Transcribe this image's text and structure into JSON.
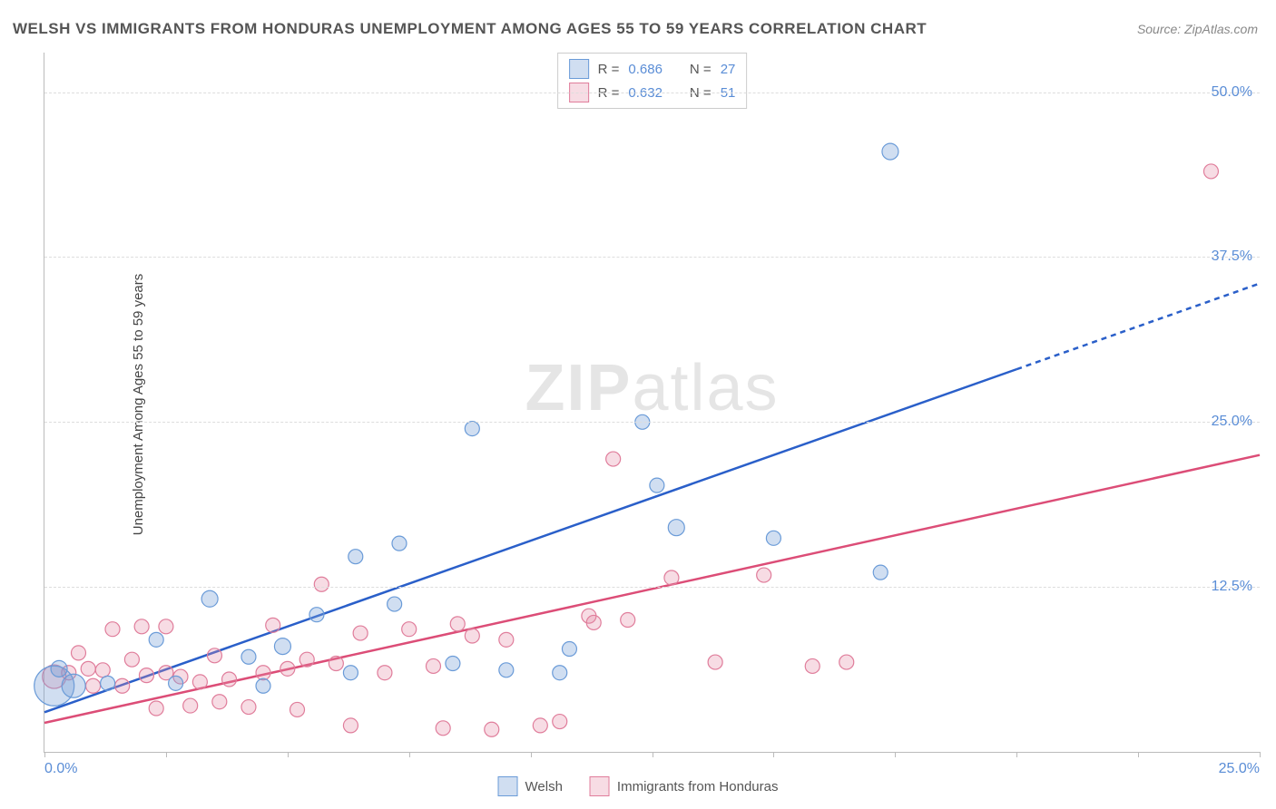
{
  "title": "WELSH VS IMMIGRANTS FROM HONDURAS UNEMPLOYMENT AMONG AGES 55 TO 59 YEARS CORRELATION CHART",
  "source": "Source: ZipAtlas.com",
  "y_axis_label": "Unemployment Among Ages 55 to 59 years",
  "watermark_a": "ZIP",
  "watermark_b": "atlas",
  "chart": {
    "type": "scatter",
    "xlim": [
      0,
      25
    ],
    "ylim": [
      0,
      53
    ],
    "x_tick_labels": {
      "left": "0.0%",
      "right": "25.0%"
    },
    "x_ticks": [
      0,
      2.5,
      5,
      7.5,
      10,
      12.5,
      15,
      17.5,
      20,
      22.5,
      25
    ],
    "y_gridlines": [
      12.5,
      25.0,
      37.5,
      50.0
    ],
    "y_tick_labels": [
      "12.5%",
      "25.0%",
      "37.5%",
      "50.0%"
    ],
    "background_color": "#ffffff",
    "grid_color": "#dddddd",
    "axis_color": "#bbbbbb",
    "tick_label_color": "#5a8dd6",
    "series": {
      "welsh": {
        "label": "Welsh",
        "R": "0.686",
        "N": "27",
        "fill": "rgba(120,160,215,0.35)",
        "stroke": "#6a9bd8",
        "line_color": "#2a5fc9",
        "points": [
          {
            "x": 0.2,
            "y": 5.0,
            "r": 22
          },
          {
            "x": 0.3,
            "y": 6.3,
            "r": 9
          },
          {
            "x": 0.6,
            "y": 5.0,
            "r": 13
          },
          {
            "x": 1.3,
            "y": 5.2,
            "r": 8
          },
          {
            "x": 2.3,
            "y": 8.5,
            "r": 8
          },
          {
            "x": 2.7,
            "y": 5.2,
            "r": 8
          },
          {
            "x": 3.4,
            "y": 11.6,
            "r": 9
          },
          {
            "x": 4.2,
            "y": 7.2,
            "r": 8
          },
          {
            "x": 4.5,
            "y": 5.0,
            "r": 8
          },
          {
            "x": 4.9,
            "y": 8.0,
            "r": 9
          },
          {
            "x": 5.6,
            "y": 10.4,
            "r": 8
          },
          {
            "x": 6.3,
            "y": 6.0,
            "r": 8
          },
          {
            "x": 6.4,
            "y": 14.8,
            "r": 8
          },
          {
            "x": 7.2,
            "y": 11.2,
            "r": 8
          },
          {
            "x": 7.3,
            "y": 15.8,
            "r": 8
          },
          {
            "x": 8.4,
            "y": 6.7,
            "r": 8
          },
          {
            "x": 8.8,
            "y": 24.5,
            "r": 8
          },
          {
            "x": 9.5,
            "y": 6.2,
            "r": 8
          },
          {
            "x": 10.6,
            "y": 6.0,
            "r": 8
          },
          {
            "x": 10.8,
            "y": 7.8,
            "r": 8
          },
          {
            "x": 12.3,
            "y": 25.0,
            "r": 8
          },
          {
            "x": 12.6,
            "y": 20.2,
            "r": 8
          },
          {
            "x": 13.0,
            "y": 17.0,
            "r": 9
          },
          {
            "x": 15.0,
            "y": 16.2,
            "r": 8
          },
          {
            "x": 17.2,
            "y": 13.6,
            "r": 8
          },
          {
            "x": 17.4,
            "y": 45.5,
            "r": 9
          }
        ],
        "trend": {
          "x1": 0,
          "y1": 3.0,
          "x2": 20.0,
          "y2": 29.0,
          "x3": 25.0,
          "y3": 35.5
        }
      },
      "honduras": {
        "label": "Immigrants from Honduras",
        "R": "0.632",
        "N": "51",
        "fill": "rgba(230,140,165,0.30)",
        "stroke": "#e07d9b",
        "line_color": "#dc4d77",
        "points": [
          {
            "x": 0.2,
            "y": 5.7,
            "r": 13
          },
          {
            "x": 0.5,
            "y": 6.0,
            "r": 8
          },
          {
            "x": 0.7,
            "y": 7.5,
            "r": 8
          },
          {
            "x": 0.9,
            "y": 6.3,
            "r": 8
          },
          {
            "x": 1.0,
            "y": 5.0,
            "r": 8
          },
          {
            "x": 1.2,
            "y": 6.2,
            "r": 8
          },
          {
            "x": 1.4,
            "y": 9.3,
            "r": 8
          },
          {
            "x": 1.6,
            "y": 5.0,
            "r": 8
          },
          {
            "x": 1.8,
            "y": 7.0,
            "r": 8
          },
          {
            "x": 2.0,
            "y": 9.5,
            "r": 8
          },
          {
            "x": 2.1,
            "y": 5.8,
            "r": 8
          },
          {
            "x": 2.3,
            "y": 3.3,
            "r": 8
          },
          {
            "x": 2.5,
            "y": 6.0,
            "r": 8
          },
          {
            "x": 2.5,
            "y": 9.5,
            "r": 8
          },
          {
            "x": 2.8,
            "y": 5.7,
            "r": 8
          },
          {
            "x": 3.0,
            "y": 3.5,
            "r": 8
          },
          {
            "x": 3.2,
            "y": 5.3,
            "r": 8
          },
          {
            "x": 3.5,
            "y": 7.3,
            "r": 8
          },
          {
            "x": 3.6,
            "y": 3.8,
            "r": 8
          },
          {
            "x": 3.8,
            "y": 5.5,
            "r": 8
          },
          {
            "x": 4.2,
            "y": 3.4,
            "r": 8
          },
          {
            "x": 4.5,
            "y": 6.0,
            "r": 8
          },
          {
            "x": 4.7,
            "y": 9.6,
            "r": 8
          },
          {
            "x": 5.0,
            "y": 6.3,
            "r": 8
          },
          {
            "x": 5.2,
            "y": 3.2,
            "r": 8
          },
          {
            "x": 5.4,
            "y": 7.0,
            "r": 8
          },
          {
            "x": 5.7,
            "y": 12.7,
            "r": 8
          },
          {
            "x": 6.0,
            "y": 6.7,
            "r": 8
          },
          {
            "x": 6.3,
            "y": 2.0,
            "r": 8
          },
          {
            "x": 6.5,
            "y": 9.0,
            "r": 8
          },
          {
            "x": 7.0,
            "y": 6.0,
            "r": 8
          },
          {
            "x": 7.5,
            "y": 9.3,
            "r": 8
          },
          {
            "x": 8.0,
            "y": 6.5,
            "r": 8
          },
          {
            "x": 8.2,
            "y": 1.8,
            "r": 8
          },
          {
            "x": 8.5,
            "y": 9.7,
            "r": 8
          },
          {
            "x": 8.8,
            "y": 8.8,
            "r": 8
          },
          {
            "x": 9.2,
            "y": 1.7,
            "r": 8
          },
          {
            "x": 9.5,
            "y": 8.5,
            "r": 8
          },
          {
            "x": 10.2,
            "y": 2.0,
            "r": 8
          },
          {
            "x": 10.6,
            "y": 2.3,
            "r": 8
          },
          {
            "x": 11.2,
            "y": 10.3,
            "r": 8
          },
          {
            "x": 11.3,
            "y": 9.8,
            "r": 8
          },
          {
            "x": 11.7,
            "y": 22.2,
            "r": 8
          },
          {
            "x": 12.0,
            "y": 10.0,
            "r": 8
          },
          {
            "x": 12.9,
            "y": 13.2,
            "r": 8
          },
          {
            "x": 13.8,
            "y": 6.8,
            "r": 8
          },
          {
            "x": 14.8,
            "y": 13.4,
            "r": 8
          },
          {
            "x": 15.8,
            "y": 6.5,
            "r": 8
          },
          {
            "x": 16.5,
            "y": 6.8,
            "r": 8
          },
          {
            "x": 24.0,
            "y": 44.0,
            "r": 8
          }
        ],
        "trend": {
          "x1": 0,
          "y1": 2.2,
          "x2": 25.0,
          "y2": 22.5
        }
      }
    }
  },
  "legend_top": {
    "rows": [
      {
        "swatch_fill": "rgba(120,160,215,0.35)",
        "swatch_stroke": "#6a9bd8",
        "R_label": "R =",
        "R_val": "0.686",
        "N_label": "N =",
        "N_val": "27"
      },
      {
        "swatch_fill": "rgba(230,140,165,0.30)",
        "swatch_stroke": "#e07d9b",
        "R_label": "R =",
        "R_val": "0.632",
        "N_label": "N =",
        "N_val": "51"
      }
    ]
  },
  "legend_bottom": [
    {
      "swatch_fill": "rgba(120,160,215,0.35)",
      "swatch_stroke": "#6a9bd8",
      "label": "Welsh"
    },
    {
      "swatch_fill": "rgba(230,140,165,0.30)",
      "swatch_stroke": "#e07d9b",
      "label": "Immigrants from Honduras"
    }
  ]
}
